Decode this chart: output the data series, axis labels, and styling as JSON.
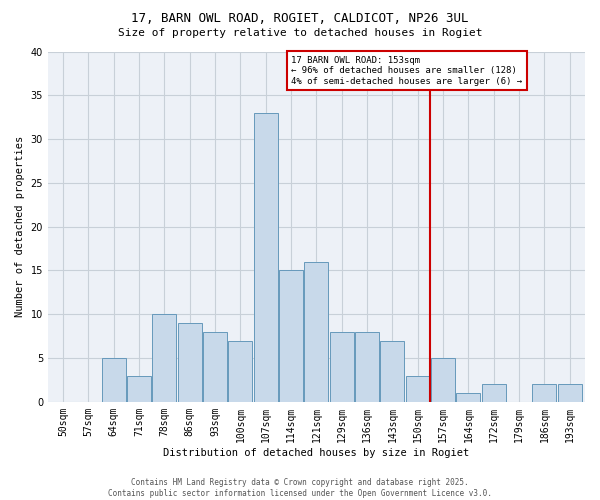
{
  "title_line1": "17, BARN OWL ROAD, ROGIET, CALDICOT, NP26 3UL",
  "title_line2": "Size of property relative to detached houses in Rogiet",
  "xlabel": "Distribution of detached houses by size in Rogiet",
  "ylabel": "Number of detached properties",
  "bar_color": "#c8d9ea",
  "bar_edge_color": "#6699bb",
  "categories": [
    "50sqm",
    "57sqm",
    "64sqm",
    "71sqm",
    "78sqm",
    "86sqm",
    "93sqm",
    "100sqm",
    "107sqm",
    "114sqm",
    "121sqm",
    "129sqm",
    "136sqm",
    "143sqm",
    "150sqm",
    "157sqm",
    "164sqm",
    "172sqm",
    "179sqm",
    "186sqm",
    "193sqm"
  ],
  "values": [
    0,
    0,
    5,
    3,
    10,
    9,
    8,
    7,
    33,
    15,
    16,
    8,
    8,
    7,
    3,
    5,
    1,
    2,
    0,
    2,
    2
  ],
  "vline_color": "#cc0000",
  "vline_position": 15,
  "annotation_text": "17 BARN OWL ROAD: 153sqm\n← 96% of detached houses are smaller (128)\n4% of semi-detached houses are larger (6) →",
  "annotation_box_color": "#cc0000",
  "ylim": [
    0,
    40
  ],
  "yticks": [
    0,
    5,
    10,
    15,
    20,
    25,
    30,
    35,
    40
  ],
  "grid_color": "#c8d0d8",
  "background_color": "#edf1f7",
  "footer_text": "Contains HM Land Registry data © Crown copyright and database right 2025.\nContains public sector information licensed under the Open Government Licence v3.0.",
  "title_fontsize": 9,
  "subtitle_fontsize": 8,
  "axis_label_fontsize": 7.5,
  "tick_fontsize": 7,
  "annotation_fontsize": 6.5,
  "footer_fontsize": 5.5
}
